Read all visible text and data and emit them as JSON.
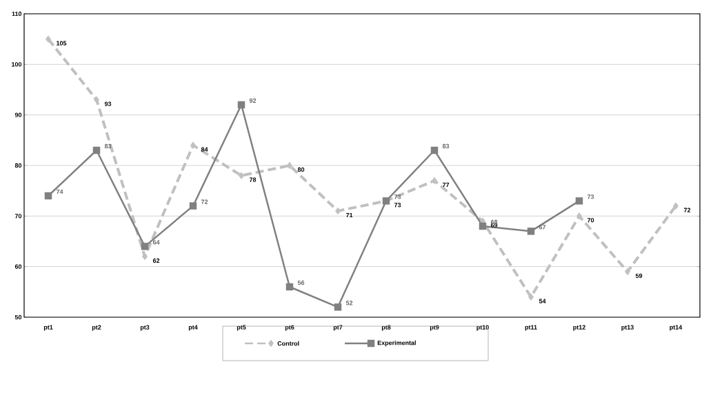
{
  "chart_data": {
    "type": "line",
    "categories": [
      "pt1",
      "pt2",
      "pt3",
      "pt4",
      "pt5",
      "pt6",
      "pt7",
      "pt8",
      "pt9",
      "pt10",
      "pt11",
      "pt12",
      "pt13",
      "pt14"
    ],
    "series": [
      {
        "name": "Control",
        "color": "#c0c0c0",
        "marker": "diamond",
        "line_style": "dashed",
        "values": [
          105,
          93,
          62,
          84,
          78,
          80,
          71,
          73,
          77,
          69,
          54,
          70,
          59,
          72
        ]
      },
      {
        "name": "Experimental",
        "color": "#808080",
        "marker": "square",
        "line_style": "solid",
        "values": [
          74,
          83,
          64,
          72,
          92,
          56,
          52,
          73,
          83,
          68,
          67,
          73,
          null,
          null
        ]
      }
    ],
    "ylim": [
      50,
      110
    ],
    "yticks": [
      50,
      60,
      70,
      80,
      90,
      100,
      110
    ],
    "grid": "y",
    "legend": "bottom",
    "data_labels": true
  }
}
